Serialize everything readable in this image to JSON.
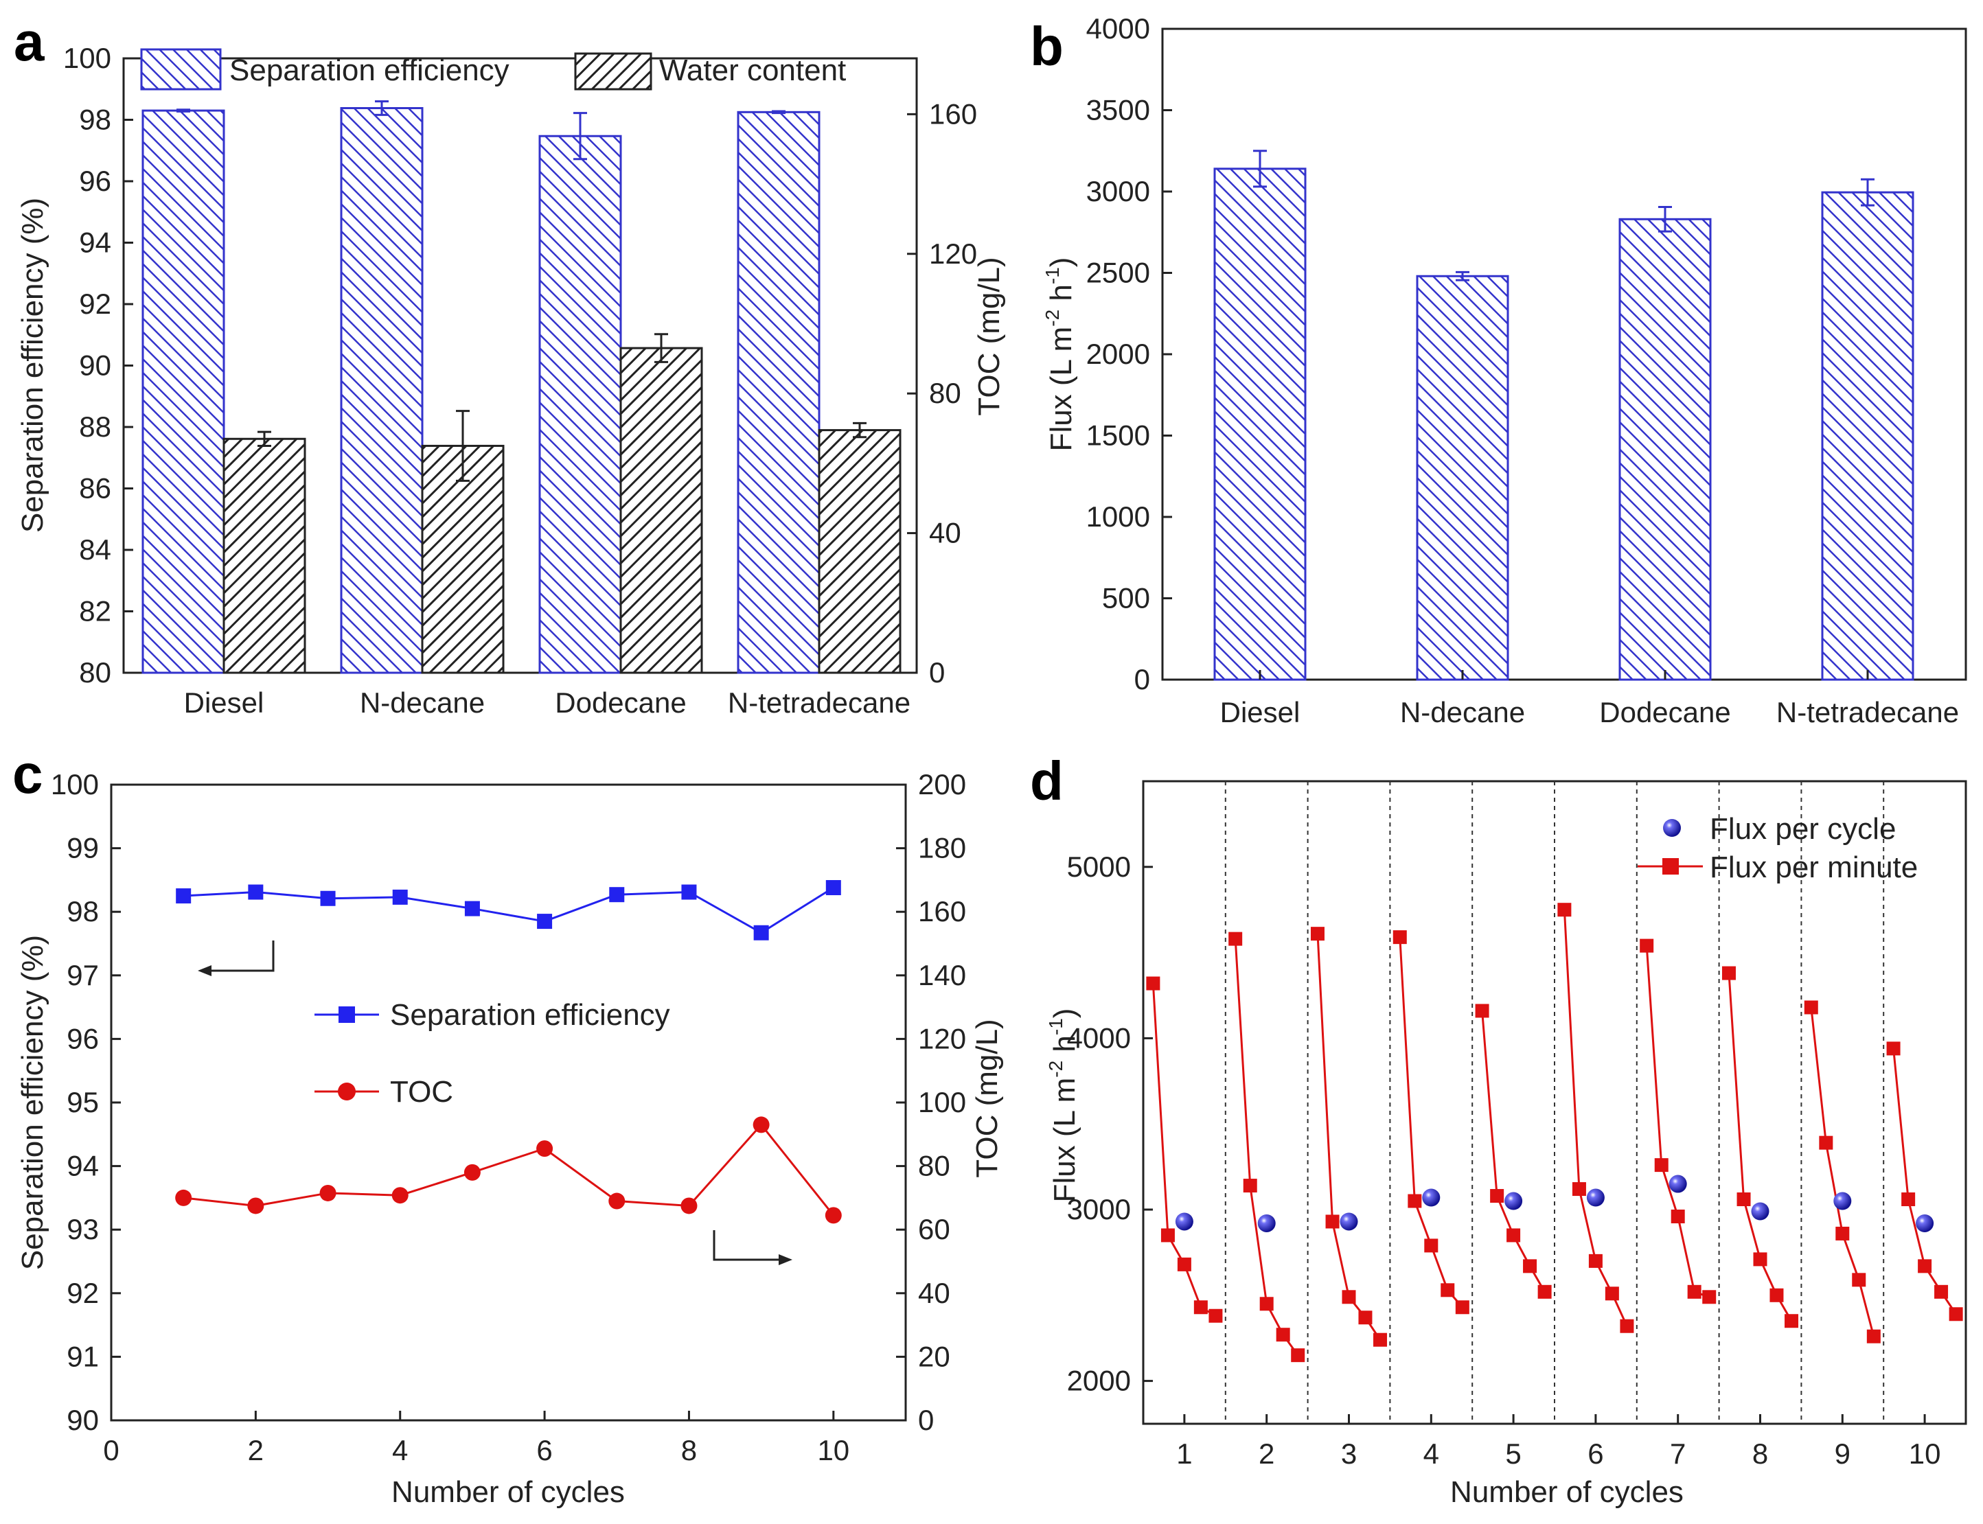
{
  "panels": {
    "a": "a",
    "b": "b",
    "c": "c",
    "d": "d"
  },
  "colors": {
    "blue": "#3333cc",
    "black": "#222222",
    "red": "#dd1111",
    "sphere": "#1a1ad9"
  },
  "chart_data": [
    {
      "id": "a",
      "type": "bar",
      "categories": [
        "Diesel",
        "N-decane",
        "Dodecane",
        "N-tetradecane"
      ],
      "series": [
        {
          "name": "Separation efficiency",
          "axis": "left",
          "values": [
            98.3,
            98.38,
            97.47,
            98.25
          ],
          "errors": [
            0.03,
            0.22,
            0.75,
            0.03
          ]
        },
        {
          "name": "Water content",
          "axis": "right",
          "values": [
            67,
            65,
            93,
            69.5
          ],
          "errors": [
            2,
            10,
            4,
            2
          ]
        }
      ],
      "ylabel": "Separation efficiency (%)",
      "y2label": "TOC (mg/L)",
      "ylim": [
        80,
        100
      ],
      "yticks": [
        "80",
        "82",
        "84",
        "86",
        "88",
        "90",
        "92",
        "94",
        "96",
        "98",
        "100"
      ],
      "y2lim": [
        0,
        176
      ],
      "y2ticks": [
        "0",
        "40",
        "80",
        "120",
        "160"
      ],
      "legend": "top"
    },
    {
      "id": "b",
      "type": "bar",
      "categories": [
        "Diesel",
        "N-decane",
        "Dodecane",
        "N-tetradecane"
      ],
      "series": [
        {
          "name": "Flux",
          "values": [
            3140,
            2480,
            2830,
            2995
          ],
          "errors": [
            110,
            25,
            75,
            80
          ]
        }
      ],
      "ylabel": "Flux (L m-2 h-1)",
      "ylim": [
        0,
        4000
      ],
      "yticks": [
        "0",
        "500",
        "1000",
        "1500",
        "2000",
        "2500",
        "3000",
        "3500",
        "4000"
      ]
    },
    {
      "id": "c",
      "type": "line",
      "x": [
        1,
        2,
        3,
        4,
        5,
        6,
        7,
        8,
        9,
        10
      ],
      "series": [
        {
          "name": "Separation efficiency",
          "axis": "left",
          "values": [
            98.25,
            98.31,
            98.21,
            98.23,
            98.05,
            97.85,
            98.27,
            98.31,
            97.67,
            98.38
          ]
        },
        {
          "name": "TOC",
          "axis": "right",
          "values": [
            70,
            67.5,
            71.5,
            70.8,
            78,
            85.5,
            69,
            67.5,
            93,
            64.5
          ]
        }
      ],
      "xlabel": "Number of cycles",
      "xlim": [
        0,
        11
      ],
      "xticks": [
        "0",
        "2",
        "4",
        "6",
        "8",
        "10"
      ],
      "ylabel": "Separation efficiency (%)",
      "ylim": [
        90,
        100
      ],
      "yticks": [
        "90",
        "91",
        "92",
        "93",
        "94",
        "95",
        "96",
        "97",
        "98",
        "99",
        "100"
      ],
      "y2label": "TOC (mg/L)",
      "y2lim": [
        0,
        200
      ],
      "y2ticks": [
        "0",
        "20",
        "40",
        "60",
        "80",
        "100",
        "120",
        "140",
        "160",
        "180",
        "200"
      ]
    },
    {
      "id": "d",
      "type": "scatter",
      "xlabel": "Number of cycles",
      "xlim": [
        0.5,
        10.5
      ],
      "xticks": [
        "1",
        "2",
        "3",
        "4",
        "5",
        "6",
        "7",
        "8",
        "9",
        "10"
      ],
      "ylabel": "Flux (L m-2 h-1)",
      "ylim": [
        1750,
        5500
      ],
      "yticks": [
        "2000",
        "3000",
        "4000",
        "5000"
      ],
      "per_cycle": {
        "name": "Flux per cycle",
        "x": [
          1,
          2,
          3,
          4,
          5,
          6,
          7,
          8,
          9,
          10
        ],
        "values": [
          2930,
          2920,
          2930,
          3070,
          3050,
          3070,
          3150,
          2990,
          3050,
          2920
        ]
      },
      "per_minute": {
        "name": "Flux per minute",
        "offsets": [
          -0.38,
          -0.2,
          0,
          0.2,
          0.38
        ],
        "cycles": [
          [
            4320,
            2850,
            2680,
            2430,
            2380
          ],
          [
            4580,
            3140,
            2450,
            2270,
            2150
          ],
          [
            4610,
            2930,
            2490,
            2370,
            2240
          ],
          [
            4590,
            3050,
            2790,
            2530,
            2430
          ],
          [
            4160,
            3080,
            2850,
            2670,
            2520
          ],
          [
            4750,
            3120,
            2700,
            2510,
            2320
          ],
          [
            4540,
            3260,
            2960,
            2520,
            2490
          ],
          [
            4380,
            3060,
            2710,
            2500,
            2350
          ],
          [
            4180,
            3390,
            2860,
            2590,
            2260
          ],
          [
            3940,
            3060,
            2670,
            2520,
            2390
          ]
        ]
      },
      "legend": "top-right"
    }
  ]
}
